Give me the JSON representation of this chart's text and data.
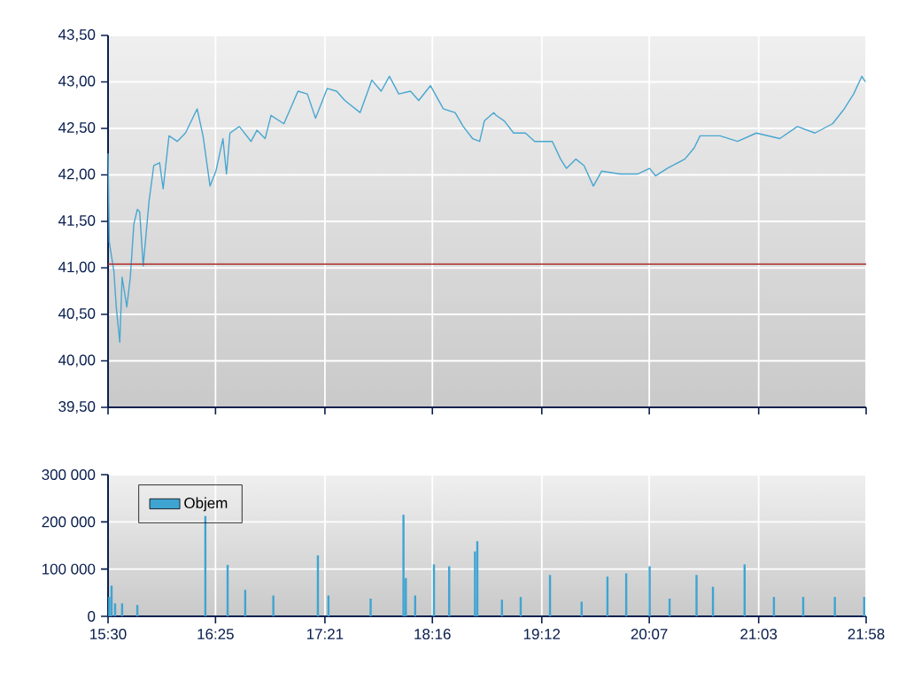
{
  "chart_data": [
    {
      "type": "line",
      "color": "#48a6d0",
      "line_style": "solid",
      "marker": "none",
      "grid": true,
      "tick_labels": "y",
      "x": [
        15.5,
        15.51,
        15.55,
        15.57,
        15.6,
        15.62,
        15.66,
        15.69,
        15.72,
        15.75,
        15.77,
        15.8,
        15.85,
        15.89,
        15.94,
        15.97,
        16.02,
        16.09,
        16.16,
        16.26,
        16.31,
        16.37,
        16.42,
        16.48,
        16.51,
        16.54,
        16.62,
        16.72,
        16.77,
        16.84,
        16.89,
        17.0,
        17.12,
        17.2,
        17.27,
        17.37,
        17.45,
        17.52,
        17.65,
        17.75,
        17.83,
        17.9,
        17.98,
        18.08,
        18.15,
        18.25,
        18.36,
        18.46,
        18.53,
        18.61,
        18.67,
        18.71,
        18.79,
        18.81,
        18.88,
        18.96,
        19.06,
        19.14,
        19.29,
        19.36,
        19.41,
        19.49,
        19.56,
        19.64,
        19.71,
        19.87,
        20.02,
        20.12,
        20.17,
        20.27,
        20.42,
        20.5,
        20.55,
        20.72,
        20.87,
        21.03,
        21.23,
        21.38,
        21.53,
        21.68,
        21.78,
        21.86,
        21.93,
        21.96
      ],
      "values": [
        42.23,
        41.28,
        40.96,
        40.58,
        40.2,
        40.9,
        40.58,
        40.9,
        41.47,
        41.63,
        41.6,
        41.02,
        41.72,
        42.1,
        42.13,
        41.85,
        42.42,
        42.36,
        42.45,
        42.71,
        42.42,
        41.88,
        42.04,
        42.39,
        42.01,
        42.45,
        42.52,
        42.36,
        42.48,
        42.39,
        42.64,
        42.55,
        42.9,
        42.87,
        42.61,
        42.93,
        42.9,
        42.8,
        42.67,
        43.02,
        42.9,
        43.06,
        42.87,
        42.9,
        42.8,
        42.96,
        42.71,
        42.67,
        42.52,
        42.39,
        42.36,
        42.58,
        42.67,
        42.64,
        42.58,
        42.45,
        42.45,
        42.36,
        42.36,
        42.17,
        42.07,
        42.17,
        42.1,
        41.88,
        42.04,
        42.01,
        42.01,
        42.07,
        41.99,
        42.07,
        42.17,
        42.29,
        42.42,
        42.42,
        42.36,
        42.45,
        42.39,
        42.52,
        42.45,
        42.55,
        42.71,
        42.87,
        43.06,
        43.0
      ],
      "xlim": [
        15.5,
        21.9667
      ],
      "xticks": [
        {
          "value": 15.5,
          "label": null
        },
        {
          "value": 16.4167,
          "label": null
        },
        {
          "value": 17.35,
          "label": null
        },
        {
          "value": 18.2667,
          "label": null
        },
        {
          "value": 19.2,
          "label": null
        },
        {
          "value": 20.1167,
          "label": null
        },
        {
          "value": 21.05,
          "label": null
        },
        {
          "value": 21.9667,
          "label": null
        }
      ],
      "ylim": [
        39.5,
        43.5
      ],
      "yticks": [
        {
          "value": 39.5,
          "label": "39,50"
        },
        {
          "value": 40.0,
          "label": "40,00"
        },
        {
          "value": 40.5,
          "label": "40,50"
        },
        {
          "value": 41.0,
          "label": "41,00"
        },
        {
          "value": 41.5,
          "label": "41,50"
        },
        {
          "value": 42.0,
          "label": "42,00"
        },
        {
          "value": 42.5,
          "label": "42,50"
        },
        {
          "value": 43.0,
          "label": "43,00"
        },
        {
          "value": 43.5,
          "label": "43,50"
        }
      ],
      "ref_lines": [
        {
          "axis": "y",
          "value": 41.04,
          "color": "#b03030"
        }
      ]
    },
    {
      "type": "bar",
      "grid": true,
      "legend": "top left",
      "x": [
        15.51,
        15.53,
        15.56,
        15.62,
        15.75,
        16.33,
        16.52,
        16.67,
        16.91,
        17.29,
        17.38,
        17.74,
        18.02,
        18.04,
        18.12,
        18.28,
        18.41,
        18.63,
        18.65,
        18.86,
        19.02,
        19.27,
        19.54,
        19.76,
        19.92,
        20.12,
        20.29,
        20.52,
        20.66,
        20.93,
        21.18,
        21.43,
        21.7,
        21.95
      ],
      "series": [
        {
          "name": "Objem",
          "color": "#3fa4d2",
          "values": [
            41000,
            65000,
            27500,
            27500,
            24000,
            212500,
            109000,
            56000,
            44000,
            129000,
            44000,
            37500,
            215000,
            81000,
            44000,
            110000,
            106000,
            137500,
            159000,
            35000,
            41000,
            87500,
            31000,
            84000,
            91000,
            106000,
            37500,
            87500,
            62500,
            110000,
            41000,
            41000,
            41000,
            41000
          ]
        }
      ],
      "xlim": [
        15.5,
        21.9667
      ],
      "xticks": [
        {
          "value": 15.5,
          "label": "15:30"
        },
        {
          "value": 16.4167,
          "label": "16:25"
        },
        {
          "value": 17.35,
          "label": "17:21"
        },
        {
          "value": 18.2667,
          "label": "18:16"
        },
        {
          "value": 19.2,
          "label": "19:12"
        },
        {
          "value": 20.1167,
          "label": "20:07"
        },
        {
          "value": 21.05,
          "label": "21:03"
        },
        {
          "value": 21.9667,
          "label": "21:58"
        }
      ],
      "ylim": [
        0,
        300000
      ],
      "yticks": [
        {
          "value": 0,
          "label": "0"
        },
        {
          "value": 100000,
          "label": "100 000"
        },
        {
          "value": 200000,
          "label": "200 000"
        },
        {
          "value": 300000,
          "label": "300 000"
        }
      ]
    }
  ]
}
